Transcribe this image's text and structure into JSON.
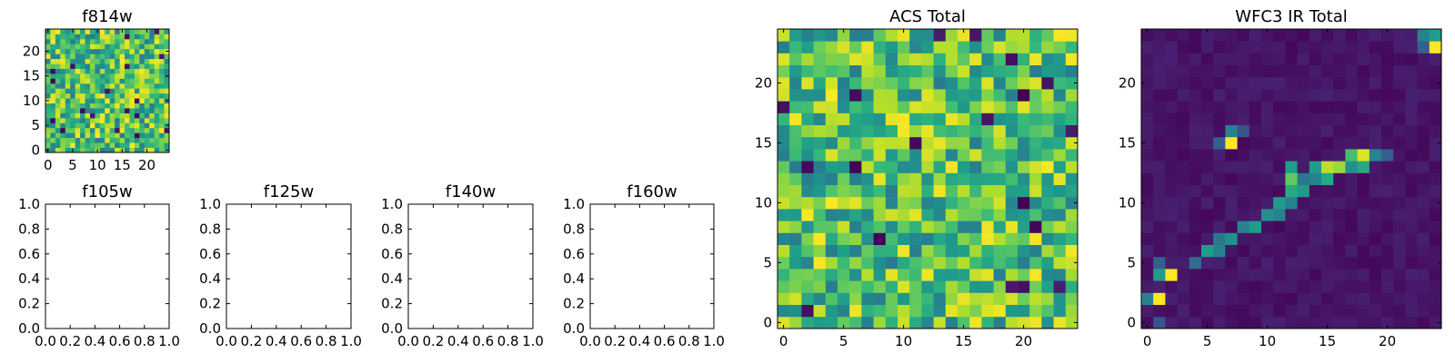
{
  "chart_data": [
    {
      "type": "heatmap",
      "title": "f814w",
      "cols": 25,
      "rows": 25,
      "xlim": [
        -0.5,
        24.5
      ],
      "ylim": [
        -0.5,
        24.5
      ],
      "xticks": [
        0,
        5,
        10,
        15,
        20
      ],
      "yticks": [
        0,
        5,
        10,
        15,
        20
      ],
      "colormap": "viridis",
      "pattern": "uniform-noise",
      "seed": 11
    },
    {
      "type": "empty",
      "title": "f105w",
      "xlim": [
        0,
        1
      ],
      "ylim": [
        0,
        1
      ],
      "xticks": [
        "0.0",
        "0.2",
        "0.4",
        "0.6",
        "0.8",
        "1.0"
      ],
      "yticks": [
        "0.0",
        "0.2",
        "0.4",
        "0.6",
        "0.8",
        "1.0"
      ]
    },
    {
      "type": "empty",
      "title": "f125w",
      "xlim": [
        0,
        1
      ],
      "ylim": [
        0,
        1
      ],
      "xticks": [
        "0.0",
        "0.2",
        "0.4",
        "0.6",
        "0.8",
        "1.0"
      ],
      "yticks": [
        "0.0",
        "0.2",
        "0.4",
        "0.6",
        "0.8",
        "1.0"
      ]
    },
    {
      "type": "empty",
      "title": "f140w",
      "xlim": [
        0,
        1
      ],
      "ylim": [
        0,
        1
      ],
      "xticks": [
        "0.0",
        "0.2",
        "0.4",
        "0.6",
        "0.8",
        "1.0"
      ],
      "yticks": [
        "0.0",
        "0.2",
        "0.4",
        "0.6",
        "0.8",
        "1.0"
      ]
    },
    {
      "type": "empty",
      "title": "f160w",
      "xlim": [
        0,
        1
      ],
      "ylim": [
        0,
        1
      ],
      "xticks": [
        "0.0",
        "0.2",
        "0.4",
        "0.6",
        "0.8",
        "1.0"
      ],
      "yticks": [
        "0.0",
        "0.2",
        "0.4",
        "0.6",
        "0.8",
        "1.0"
      ]
    },
    {
      "type": "heatmap",
      "title": "ACS Total",
      "cols": 25,
      "rows": 25,
      "xlim": [
        -0.5,
        24.5
      ],
      "ylim": [
        -0.5,
        24.5
      ],
      "xticks": [
        0,
        5,
        10,
        15,
        20
      ],
      "yticks": [
        0,
        5,
        10,
        15,
        20
      ],
      "colormap": "viridis",
      "pattern": "uniform-noise",
      "seed": 29
    },
    {
      "type": "heatmap",
      "title": "WFC3 IR Total",
      "cols": 25,
      "rows": 25,
      "xlim": [
        -0.5,
        24.5
      ],
      "ylim": [
        -0.5,
        24.5
      ],
      "xticks": [
        0,
        5,
        10,
        15,
        20
      ],
      "yticks": [
        0,
        5,
        10,
        15,
        20
      ],
      "colormap": "viridis",
      "pattern": "sparse-track",
      "seed": 7,
      "hot_cells": [
        {
          "x": 0,
          "y": 2,
          "v": 0.45
        },
        {
          "x": 1,
          "y": 2,
          "v": 1.0
        },
        {
          "x": 1,
          "y": 4,
          "v": 0.55
        },
        {
          "x": 2,
          "y": 4,
          "v": 1.0
        },
        {
          "x": 1,
          "y": 5,
          "v": 0.3
        },
        {
          "x": 4,
          "y": 5,
          "v": 0.35
        },
        {
          "x": 5,
          "y": 6,
          "v": 0.55
        },
        {
          "x": 6,
          "y": 6,
          "v": 0.45
        },
        {
          "x": 6,
          "y": 7,
          "v": 0.4
        },
        {
          "x": 7,
          "y": 7,
          "v": 0.5
        },
        {
          "x": 8,
          "y": 8,
          "v": 0.45
        },
        {
          "x": 9,
          "y": 8,
          "v": 0.55
        },
        {
          "x": 10,
          "y": 9,
          "v": 0.5
        },
        {
          "x": 11,
          "y": 9,
          "v": 0.45
        },
        {
          "x": 11,
          "y": 10,
          "v": 0.55
        },
        {
          "x": 12,
          "y": 10,
          "v": 0.45
        },
        {
          "x": 12,
          "y": 11,
          "v": 0.6
        },
        {
          "x": 13,
          "y": 11,
          "v": 0.55
        },
        {
          "x": 12,
          "y": 12,
          "v": 0.75
        },
        {
          "x": 13,
          "y": 12,
          "v": 0.4
        },
        {
          "x": 14,
          "y": 12,
          "v": 0.45
        },
        {
          "x": 12,
          "y": 13,
          "v": 0.55
        },
        {
          "x": 14,
          "y": 13,
          "v": 0.55
        },
        {
          "x": 15,
          "y": 12,
          "v": 0.6
        },
        {
          "x": 15,
          "y": 13,
          "v": 0.9
        },
        {
          "x": 16,
          "y": 13,
          "v": 0.85
        },
        {
          "x": 17,
          "y": 13,
          "v": 0.5
        },
        {
          "x": 17,
          "y": 14,
          "v": 0.7
        },
        {
          "x": 18,
          "y": 14,
          "v": 0.95
        },
        {
          "x": 18,
          "y": 13,
          "v": 0.6
        },
        {
          "x": 19,
          "y": 14,
          "v": 0.45
        },
        {
          "x": 20,
          "y": 14,
          "v": 0.3
        },
        {
          "x": 7,
          "y": 15,
          "v": 1.0
        },
        {
          "x": 7,
          "y": 16,
          "v": 0.45
        },
        {
          "x": 6,
          "y": 15,
          "v": 0.3
        },
        {
          "x": 8,
          "y": 16,
          "v": 0.25
        },
        {
          "x": 23,
          "y": 24,
          "v": 0.45
        },
        {
          "x": 24,
          "y": 24,
          "v": 0.55
        },
        {
          "x": 24,
          "y": 23,
          "v": 1.0
        },
        {
          "x": 23,
          "y": 23,
          "v": 0.3
        },
        {
          "x": 1,
          "y": 0,
          "v": 0.25
        }
      ]
    }
  ]
}
